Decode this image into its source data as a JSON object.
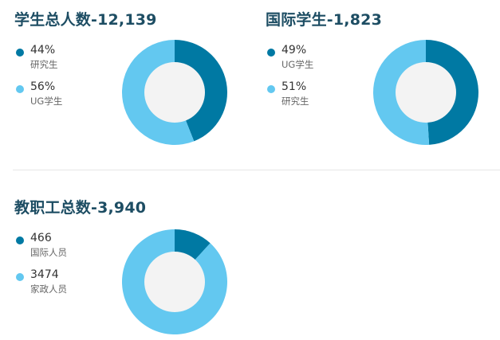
{
  "colors": {
    "dark": "#0079a3",
    "light": "#63c8f0",
    "center": "#f3f3f3"
  },
  "chart_data": [
    {
      "type": "pie",
      "title": "学生总人数-12,139",
      "slices": [
        {
          "value_label": "44%",
          "label": "研究生",
          "value": 44,
          "color": "#0079a3"
        },
        {
          "value_label": "56%",
          "label": "UG学生",
          "value": 56,
          "color": "#63c8f0"
        }
      ]
    },
    {
      "type": "pie",
      "title": "国际学生-1,823",
      "slices": [
        {
          "value_label": "49%",
          "label": "UG学生",
          "value": 49,
          "color": "#0079a3"
        },
        {
          "value_label": "51%",
          "label": "研究生",
          "value": 51,
          "color": "#63c8f0"
        }
      ]
    },
    {
      "type": "pie",
      "title": "教职工总数-3,940",
      "slices": [
        {
          "value_label": "466",
          "label": "国际人员",
          "value": 466,
          "color": "#0079a3"
        },
        {
          "value_label": "3474",
          "label": "家政人员",
          "value": 3474,
          "color": "#63c8f0"
        }
      ]
    }
  ]
}
